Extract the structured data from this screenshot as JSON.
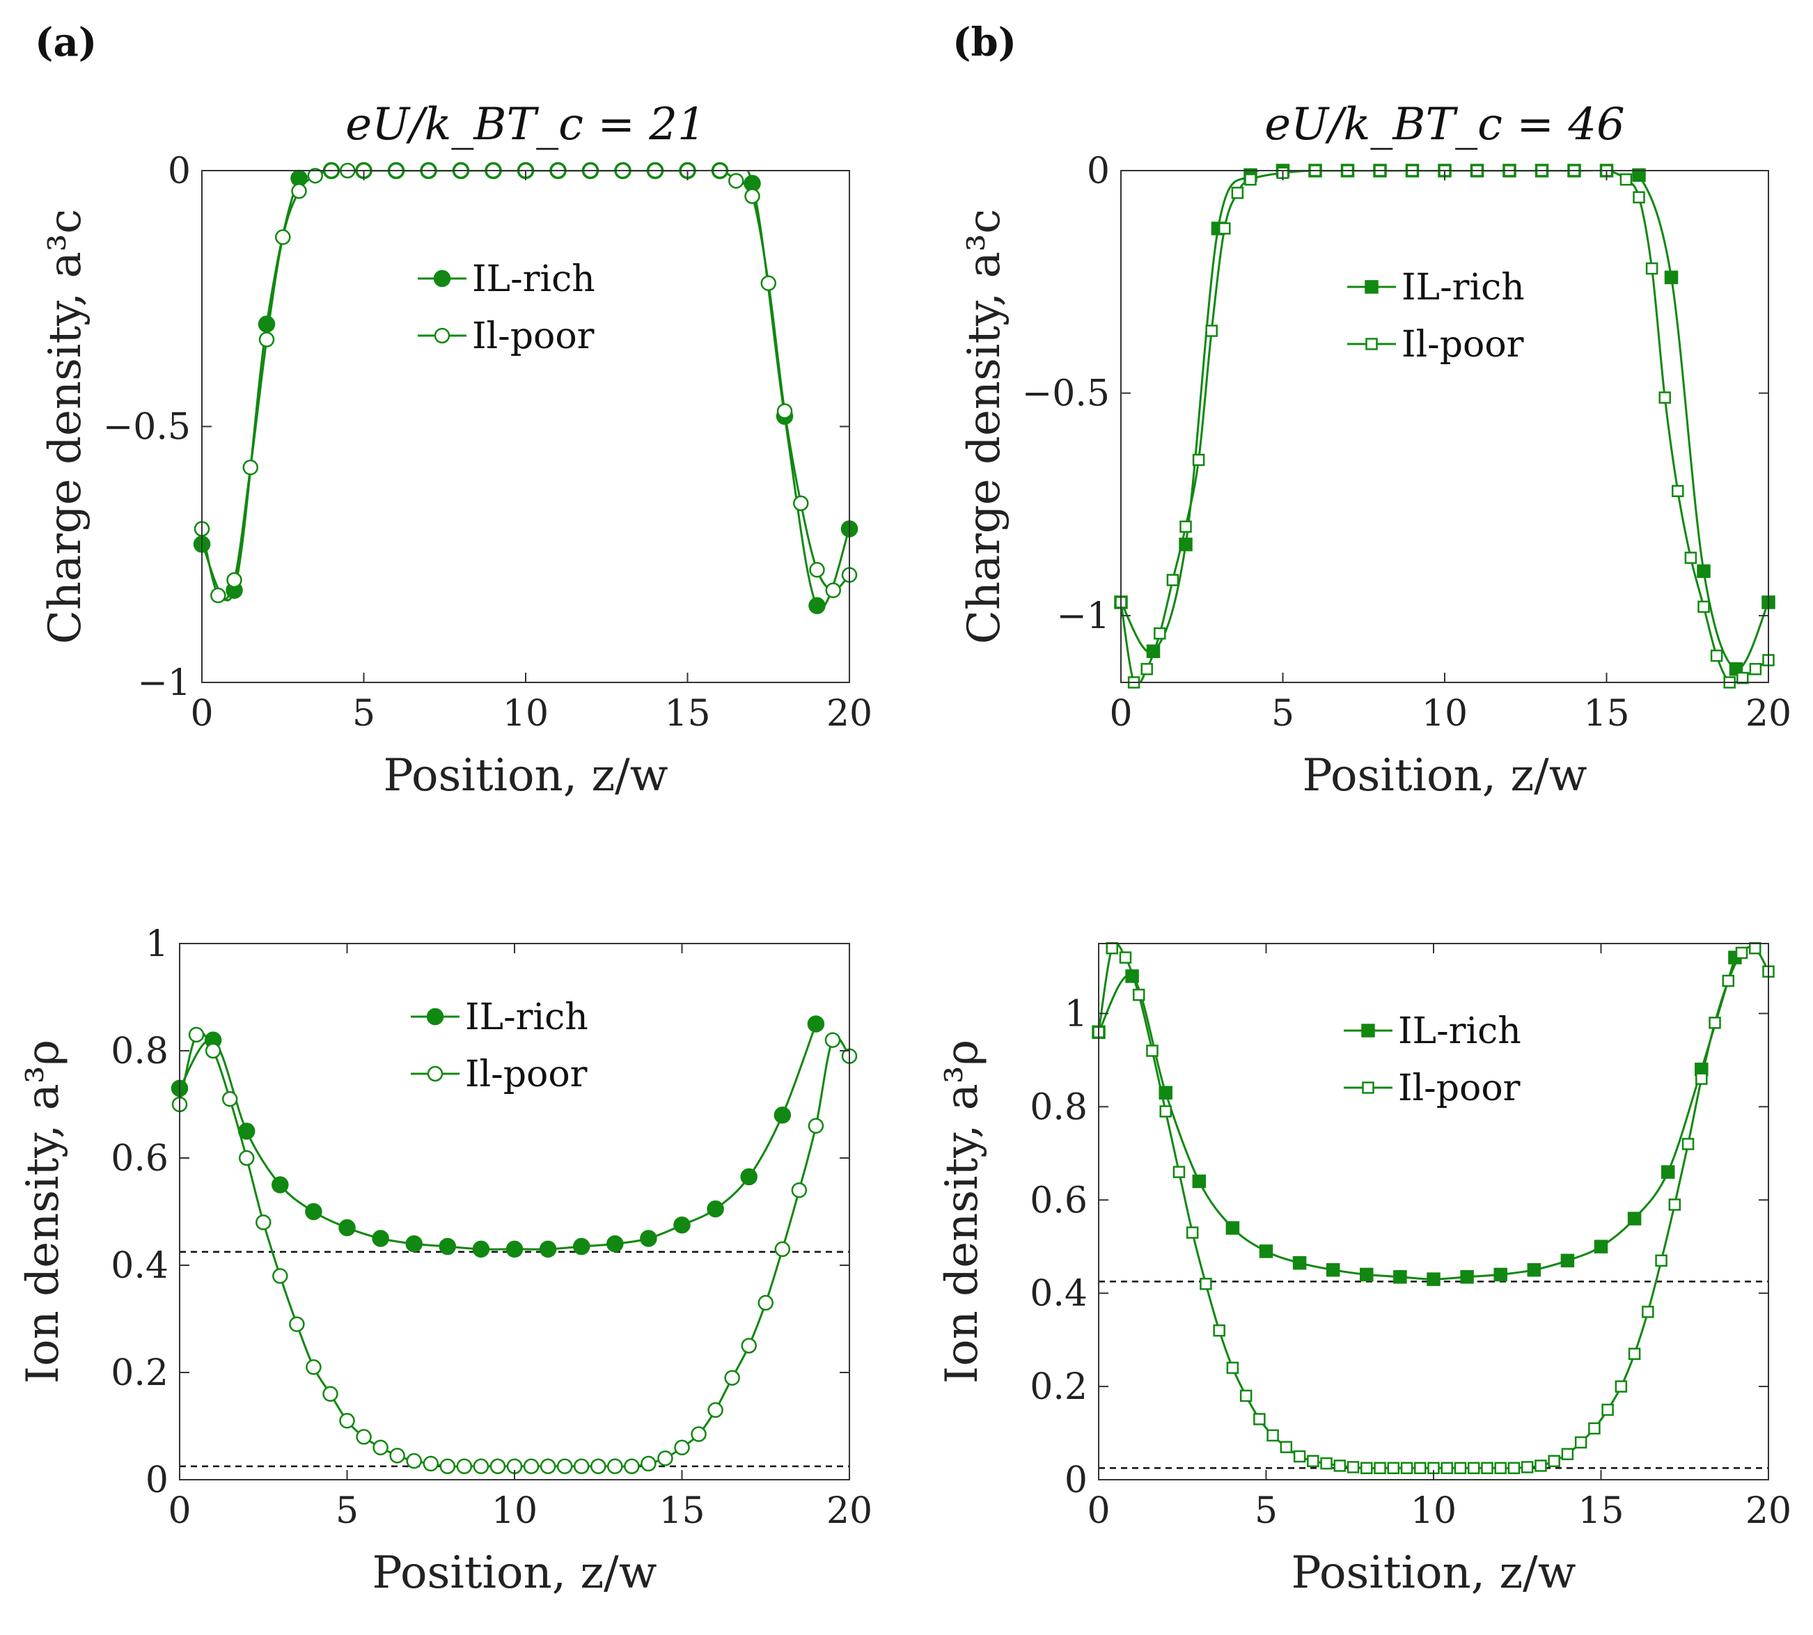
{
  "panel_labels": [
    "(a)",
    "(b)"
  ],
  "colors": {
    "series": "#118811",
    "axes": "#333333",
    "reference": "#111111"
  },
  "chart_data": [
    {
      "id": "a-top",
      "type": "line",
      "panel": "(a)",
      "title": "eU/k_BT_c = 21",
      "xlabel": "Position, z/w",
      "ylabel": "Charge density, a³c",
      "xlim": [
        0,
        20
      ],
      "ylim": [
        -1,
        0
      ],
      "xticks": [
        0,
        5,
        10,
        15,
        20
      ],
      "xtick_labels": [
        "0",
        "5",
        "10",
        "15",
        "20"
      ],
      "yticks": [
        -1,
        -0.5,
        0
      ],
      "ytick_labels": [
        "-1",
        "-0.5",
        "0"
      ],
      "marker": "circle",
      "legend_position": "upper-center",
      "series": [
        {
          "name": "IL-rich",
          "filled": true,
          "x": [
            0,
            1,
            2,
            3,
            4,
            5,
            6,
            7,
            8,
            9,
            10,
            11,
            12,
            13,
            14,
            15,
            16,
            17,
            18,
            19,
            20
          ],
          "y": [
            -0.73,
            -0.82,
            -0.3,
            -0.015,
            0,
            0,
            0,
            0,
            0,
            0,
            0,
            0,
            0,
            0,
            0,
            0,
            0,
            -0.025,
            -0.48,
            -0.85,
            -0.7
          ]
        },
        {
          "name": "Il-poor",
          "filled": false,
          "x": [
            0,
            0.5,
            1,
            1.5,
            2,
            2.5,
            3,
            3.5,
            4,
            4.5,
            5,
            6,
            7,
            8,
            9,
            10,
            11,
            12,
            13,
            14,
            15,
            16,
            16.5,
            17,
            17.5,
            18,
            18.5,
            19,
            19.5,
            20
          ],
          "y": [
            -0.7,
            -0.83,
            -0.8,
            -0.58,
            -0.33,
            -0.13,
            -0.04,
            -0.01,
            0,
            0,
            0,
            0,
            0,
            0,
            0,
            0,
            0,
            0,
            0,
            0,
            0,
            0,
            -0.02,
            -0.05,
            -0.22,
            -0.47,
            -0.65,
            -0.78,
            -0.82,
            -0.79
          ]
        }
      ]
    },
    {
      "id": "b-top",
      "type": "line",
      "panel": "(b)",
      "title": "eU/k_BT_c = 46",
      "xlabel": "Position, z/w",
      "ylabel": "Charge density, a³c",
      "xlim": [
        0,
        20
      ],
      "ylim": [
        -1.15,
        0
      ],
      "xticks": [
        0,
        5,
        10,
        15,
        20
      ],
      "xtick_labels": [
        "0",
        "5",
        "10",
        "15",
        "20"
      ],
      "yticks": [
        -1,
        -0.5,
        0
      ],
      "ytick_labels": [
        "-1",
        "-0.5",
        "0"
      ],
      "marker": "square",
      "legend_position": "upper-center",
      "series": [
        {
          "name": "IL-rich",
          "filled": true,
          "x": [
            0,
            1,
            2,
            3,
            4,
            5,
            6,
            7,
            8,
            9,
            10,
            11,
            12,
            13,
            14,
            15,
            16,
            17,
            18,
            19,
            20
          ],
          "y": [
            -0.97,
            -1.08,
            -0.84,
            -0.13,
            -0.01,
            0,
            0,
            0,
            0,
            0,
            0,
            0,
            0,
            0,
            0,
            0,
            -0.01,
            -0.24,
            -0.9,
            -1.12,
            -0.97
          ]
        },
        {
          "name": "Il-poor",
          "filled": false,
          "x": [
            0,
            0.4,
            0.8,
            1.2,
            1.6,
            2,
            2.4,
            2.8,
            3.2,
            3.6,
            4,
            5,
            6,
            7,
            8,
            9,
            10,
            11,
            12,
            13,
            14,
            15,
            15.6,
            16,
            16.4,
            16.8,
            17.2,
            17.6,
            18,
            18.4,
            18.8,
            19.2,
            19.6,
            20
          ],
          "y": [
            -0.97,
            -1.15,
            -1.12,
            -1.04,
            -0.92,
            -0.8,
            -0.65,
            -0.36,
            -0.13,
            -0.05,
            -0.02,
            -0.005,
            0,
            0,
            0,
            0,
            0,
            0,
            0,
            0,
            0,
            0,
            -0.02,
            -0.06,
            -0.22,
            -0.51,
            -0.72,
            -0.87,
            -0.98,
            -1.09,
            -1.15,
            -1.14,
            -1.12,
            -1.1
          ]
        }
      ]
    },
    {
      "id": "a-bottom",
      "type": "line",
      "panel": "(a)",
      "title": "",
      "xlabel": "Position, z/w",
      "ylabel": "Ion density, a³ρ",
      "xlim": [
        0,
        20
      ],
      "ylim": [
        0,
        1
      ],
      "xticks": [
        0,
        5,
        10,
        15,
        20
      ],
      "xtick_labels": [
        "0",
        "5",
        "10",
        "15",
        "20"
      ],
      "yticks": [
        0,
        0.2,
        0.4,
        0.6,
        0.8,
        1
      ],
      "ytick_labels": [
        "0",
        "0.2",
        "0.4",
        "0.6",
        "0.8",
        "1"
      ],
      "marker": "circle",
      "legend_position": "upper-center",
      "reference_lines": [
        0.425,
        0.025
      ],
      "series": [
        {
          "name": "IL-rich",
          "filled": true,
          "x": [
            0,
            1,
            2,
            3,
            4,
            5,
            6,
            7,
            8,
            9,
            10,
            11,
            12,
            13,
            14,
            15,
            16,
            17,
            18,
            19
          ],
          "y": [
            0.73,
            0.82,
            0.65,
            0.55,
            0.5,
            0.47,
            0.45,
            0.44,
            0.435,
            0.43,
            0.43,
            0.43,
            0.435,
            0.44,
            0.45,
            0.475,
            0.505,
            0.565,
            0.68,
            0.85
          ]
        },
        {
          "name": "Il-poor",
          "filled": false,
          "x": [
            0,
            0.5,
            1,
            1.5,
            2,
            2.5,
            3,
            3.5,
            4,
            4.5,
            5,
            5.5,
            6,
            6.5,
            7,
            7.5,
            8,
            8.5,
            9,
            9.5,
            10,
            10.5,
            11,
            11.5,
            12,
            12.5,
            13,
            13.5,
            14,
            14.5,
            15,
            15.5,
            16,
            16.5,
            17,
            17.5,
            18,
            18.5,
            19,
            19.5,
            20
          ],
          "y": [
            0.7,
            0.83,
            0.8,
            0.71,
            0.6,
            0.48,
            0.38,
            0.29,
            0.21,
            0.16,
            0.11,
            0.08,
            0.06,
            0.045,
            0.035,
            0.03,
            0.025,
            0.025,
            0.025,
            0.025,
            0.025,
            0.025,
            0.025,
            0.025,
            0.025,
            0.025,
            0.025,
            0.025,
            0.03,
            0.04,
            0.06,
            0.085,
            0.13,
            0.19,
            0.25,
            0.33,
            0.43,
            0.54,
            0.66,
            0.82,
            0.79
          ]
        }
      ]
    },
    {
      "id": "b-bottom",
      "type": "line",
      "panel": "(b)",
      "title": "",
      "xlabel": "Position, z/w",
      "ylabel": "Ion density, a³ρ",
      "xlim": [
        0,
        20
      ],
      "ylim": [
        0,
        1.15
      ],
      "xticks": [
        0,
        5,
        10,
        15,
        20
      ],
      "xtick_labels": [
        "0",
        "5",
        "10",
        "15",
        "20"
      ],
      "yticks": [
        0,
        0.2,
        0.4,
        0.6,
        0.8,
        1
      ],
      "ytick_labels": [
        "0",
        "0.2",
        "0.4",
        "0.6",
        "0.8",
        "1"
      ],
      "marker": "square",
      "legend_position": "upper-center",
      "reference_lines": [
        0.425,
        0.025
      ],
      "series": [
        {
          "name": "IL-rich",
          "filled": true,
          "x": [
            0,
            1,
            2,
            3,
            4,
            5,
            6,
            7,
            8,
            9,
            10,
            11,
            12,
            13,
            14,
            15,
            16,
            17,
            18,
            19
          ],
          "y": [
            0.96,
            1.08,
            0.83,
            0.64,
            0.54,
            0.49,
            0.465,
            0.45,
            0.44,
            0.435,
            0.43,
            0.435,
            0.44,
            0.45,
            0.47,
            0.5,
            0.56,
            0.66,
            0.88,
            1.12
          ]
        },
        {
          "name": "Il-poor",
          "filled": false,
          "x": [
            0,
            0.4,
            0.8,
            1.2,
            1.6,
            2,
            2.4,
            2.8,
            3.2,
            3.6,
            4,
            4.4,
            4.8,
            5.2,
            5.6,
            6,
            6.4,
            6.8,
            7.2,
            7.6,
            8,
            8.4,
            8.8,
            9.2,
            9.6,
            10,
            10.4,
            10.8,
            11.2,
            11.6,
            12,
            12.4,
            12.8,
            13.2,
            13.6,
            14,
            14.4,
            14.8,
            15.2,
            15.6,
            16,
            16.4,
            16.8,
            17.2,
            17.6,
            18,
            18.4,
            18.8,
            19.2,
            19.6,
            20
          ],
          "y": [
            0.96,
            1.14,
            1.12,
            1.04,
            0.92,
            0.79,
            0.66,
            0.53,
            0.42,
            0.32,
            0.24,
            0.18,
            0.13,
            0.095,
            0.07,
            0.05,
            0.04,
            0.035,
            0.03,
            0.027,
            0.025,
            0.025,
            0.025,
            0.025,
            0.025,
            0.025,
            0.025,
            0.025,
            0.025,
            0.025,
            0.025,
            0.025,
            0.027,
            0.03,
            0.04,
            0.055,
            0.08,
            0.11,
            0.15,
            0.2,
            0.27,
            0.36,
            0.47,
            0.59,
            0.72,
            0.86,
            0.98,
            1.07,
            1.13,
            1.14,
            1.09
          ]
        }
      ]
    }
  ]
}
